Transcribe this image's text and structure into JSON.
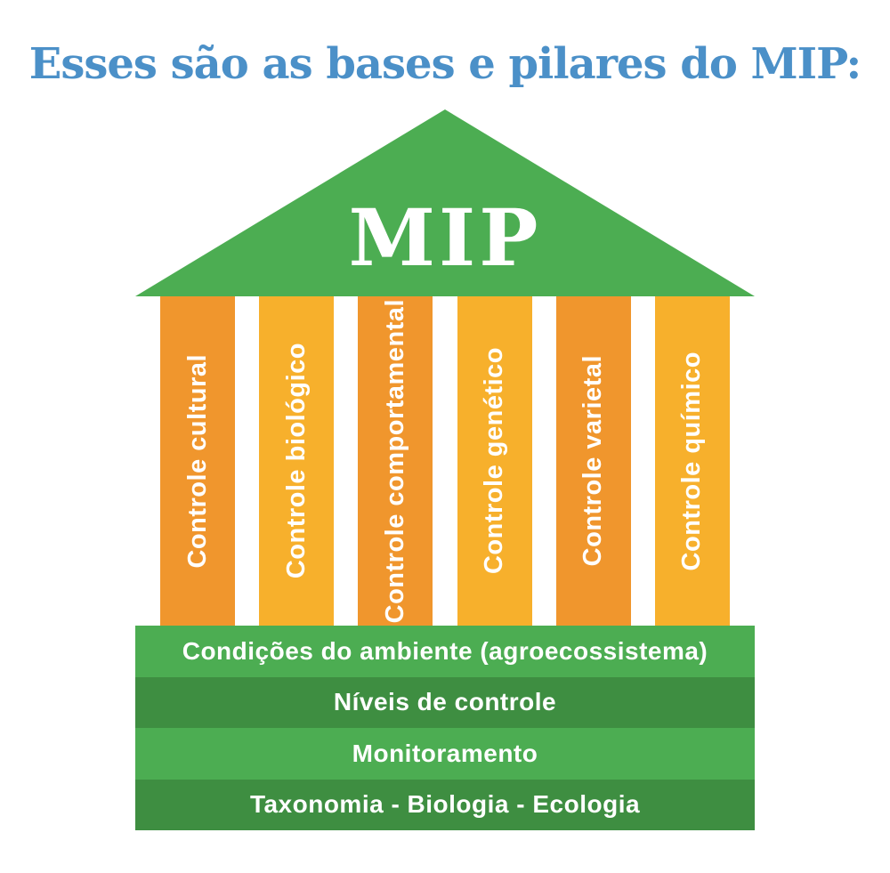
{
  "title": {
    "text": "Esses são as bases e pilares do MIP:",
    "color": "#4B90C8"
  },
  "diagram": {
    "roof": {
      "label": "MIP",
      "color": "#4CAD52",
      "text_color": "#FFFFFF"
    },
    "pillars": [
      {
        "label": "Controle cultural",
        "color": "#F0962D"
      },
      {
        "label": "Controle biológico",
        "color": "#F7B02C"
      },
      {
        "label": "Controle comportamental",
        "color": "#F0962D"
      },
      {
        "label": "Controle genético",
        "color": "#F7B02C"
      },
      {
        "label": "Controle varietal",
        "color": "#F0962D"
      },
      {
        "label": "Controle químico",
        "color": "#F7B02C"
      }
    ],
    "base_rows": [
      {
        "label": "Condições do ambiente (agroecossistema)",
        "color": "#4CAD52"
      },
      {
        "label": "Níveis de controle",
        "color": "#3E8E41"
      },
      {
        "label": "Monitoramento",
        "color": "#4CAD52"
      },
      {
        "label": "Taxonomia - Biologia - Ecologia",
        "color": "#3E8E41"
      }
    ]
  }
}
